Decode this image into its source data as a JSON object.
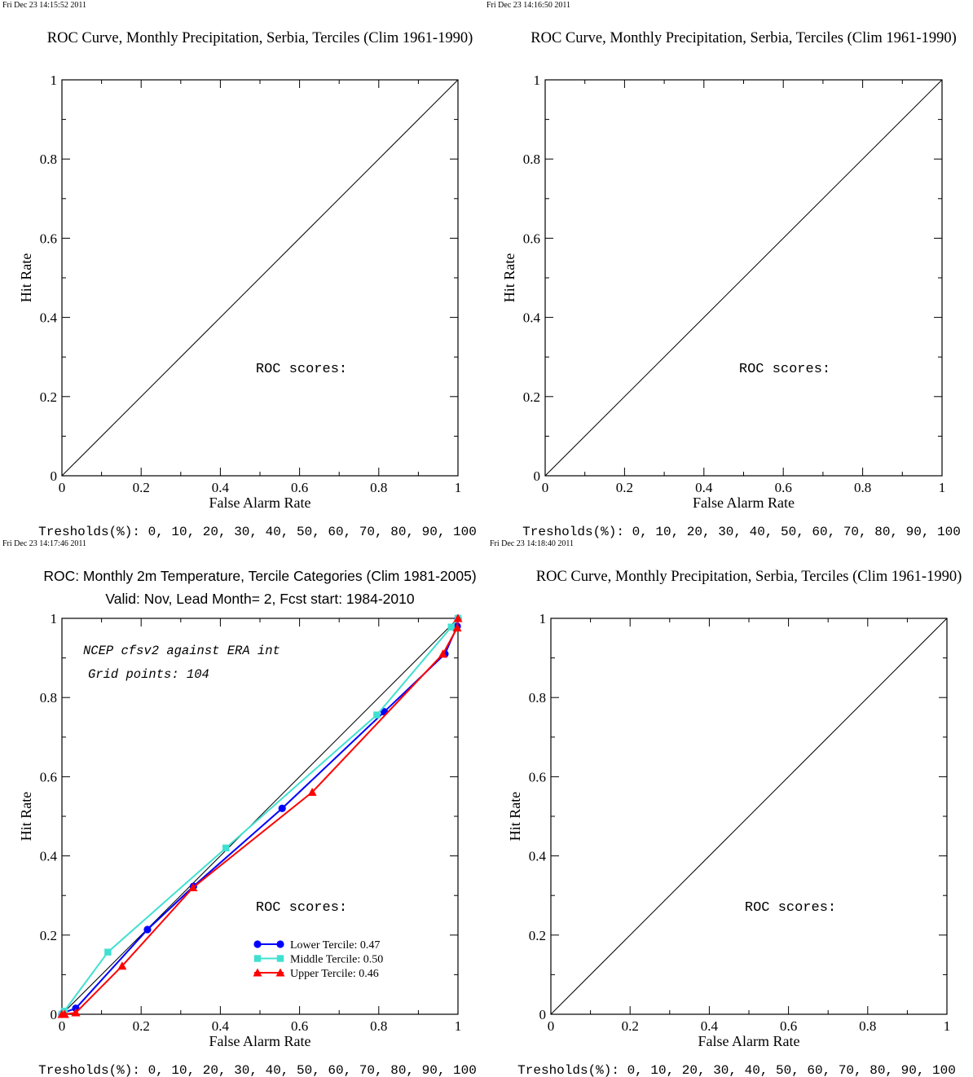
{
  "panels": [
    {
      "timestamp": "Fri Dec 23 14:15:52 2011",
      "title_lines": [
        "ROC Curve, Monthly Precipitation, Serbia, Terciles (Clim 1961-1990)"
      ],
      "title_font": "serif",
      "xlabel": "False Alarm Rate",
      "ylabel": "Hit Rate",
      "roc_label": "ROC scores:",
      "thresholds": "Tresholds(%): 0, 10, 20, 30, 40, 50, 60, 70, 80, 90, 100",
      "annotations": [],
      "legend": [],
      "series": []
    },
    {
      "timestamp": "Fri Dec 23 14:16:50 2011",
      "title_lines": [
        "ROC Curve, Monthly Precipitation, Serbia, Terciles (Clim 1961-1990)"
      ],
      "title_font": "serif",
      "xlabel": "False Alarm Rate",
      "ylabel": "Hit Rate",
      "roc_label": "ROC scores:",
      "thresholds": "Tresholds(%): 0, 10, 20, 30, 40, 50, 60, 70, 80, 90, 100",
      "annotations": [],
      "legend": [],
      "series": []
    },
    {
      "timestamp": "Fri Dec 23 14:17:46 2011",
      "title_lines": [
        "ROC: Monthly 2m Temperature, Tercile Categories (Clim 1981-2005)",
        "Valid: Nov, Lead Month= 2, Fcst start: 1984-2010"
      ],
      "title_font": "sans",
      "xlabel": "False Alarm Rate",
      "ylabel": "Hit Rate",
      "roc_label": "ROC scores:",
      "thresholds": "Tresholds(%): 0, 10, 20, 30, 40, 50, 60, 70, 80, 90, 100",
      "annotations": [
        "NCEP cfsv2 against ERA int",
        "Grid points:  104"
      ],
      "legend": [
        "Lower Tercile: 0.47",
        "Middle Tercile: 0.50",
        "Upper Tercile: 0.46"
      ],
      "series": [
        0,
        1,
        2
      ]
    },
    {
      "timestamp": "Fri Dec 23 14:18:40 2011",
      "title_lines": [
        "ROC Curve, Monthly Precipitation, Serbia, Terciles (Clim 1961-1990)"
      ],
      "title_font": "serif",
      "xlabel": "False Alarm Rate",
      "ylabel": "Hit Rate",
      "roc_label": "ROC scores:",
      "thresholds": "Tresholds(%): 0, 10, 20, 30, 40, 50, 60, 70, 80, 90, 100",
      "annotations": [],
      "legend": [],
      "series": []
    }
  ],
  "chart_data": [
    {
      "type": "line",
      "title": "ROC Curve, Monthly Precipitation, Serbia, Terciles (Clim 1961-1990)",
      "xlabel": "False Alarm Rate",
      "ylabel": "Hit Rate",
      "xlim": [
        0,
        1
      ],
      "ylim": [
        0,
        1
      ],
      "xticks": [
        "0",
        "0.2",
        "0.4",
        "0.6",
        "0.8",
        "1"
      ],
      "yticks": [
        "0",
        "0.2",
        "0.4",
        "0.6",
        "0.8",
        "1"
      ],
      "diagonal": [
        [
          0,
          0
        ],
        [
          1,
          1
        ]
      ],
      "series": []
    },
    {
      "type": "line",
      "title": "ROC Curve, Monthly Precipitation, Serbia, Terciles (Clim 1961-1990)",
      "xlabel": "False Alarm Rate",
      "ylabel": "Hit Rate",
      "xlim": [
        0,
        1
      ],
      "ylim": [
        0,
        1
      ],
      "xticks": [
        "0",
        "0.2",
        "0.4",
        "0.6",
        "0.8",
        "1"
      ],
      "yticks": [
        "0",
        "0.2",
        "0.4",
        "0.6",
        "0.8",
        "1"
      ],
      "diagonal": [
        [
          0,
          0
        ],
        [
          1,
          1
        ]
      ],
      "series": []
    },
    {
      "type": "line",
      "title": "ROC: Monthly 2m Temperature, Tercile Categories (Clim 1981-2005)",
      "subtitle": "Valid: Nov, Lead Month= 2, Fcst start: 1984-2010",
      "xlabel": "False Alarm Rate",
      "ylabel": "Hit Rate",
      "xlim": [
        0,
        1
      ],
      "ylim": [
        0,
        1
      ],
      "xticks": [
        "0",
        "0.2",
        "0.4",
        "0.6",
        "0.8",
        "1"
      ],
      "yticks": [
        "0",
        "0.2",
        "0.4",
        "0.6",
        "0.8",
        "1"
      ],
      "diagonal": [
        [
          0,
          0
        ],
        [
          1,
          1
        ]
      ],
      "legend_position": "bottom-center",
      "series": [
        {
          "name": "Lower Tercile: 0.47",
          "color": "#0000ff",
          "marker": "circle",
          "x": [
            0.0,
            0.004,
            0.035,
            0.216,
            0.332,
            0.556,
            0.814,
            0.967,
            0.998,
            1.0
          ],
          "y": [
            0.0,
            0.004,
            0.015,
            0.214,
            0.323,
            0.52,
            0.764,
            0.91,
            0.98,
            1.0
          ]
        },
        {
          "name": "Middle Tercile: 0.50",
          "color": "#40e0d0",
          "marker": "square",
          "x": [
            0.0,
            0.006,
            0.116,
            0.414,
            0.795,
            0.983,
            1.0
          ],
          "y": [
            0.0,
            0.008,
            0.157,
            0.42,
            0.756,
            0.978,
            1.0
          ]
        },
        {
          "name": "Upper Tercile: 0.46",
          "color": "#ff0000",
          "marker": "triangle",
          "x": [
            0.0,
            0.007,
            0.035,
            0.152,
            0.331,
            0.632,
            0.962,
            0.998,
            1.0
          ],
          "y": [
            0.0,
            0.0,
            0.004,
            0.122,
            0.32,
            0.561,
            0.91,
            0.976,
            1.0
          ]
        }
      ]
    },
    {
      "type": "line",
      "title": "ROC Curve, Monthly Precipitation, Serbia, Terciles (Clim 1961-1990)",
      "xlabel": "False Alarm Rate",
      "ylabel": "Hit Rate",
      "xlim": [
        0,
        1
      ],
      "ylim": [
        0,
        1
      ],
      "xticks": [
        "0",
        "0.2",
        "0.4",
        "0.6",
        "0.8",
        "1"
      ],
      "yticks": [
        "0",
        "0.2",
        "0.4",
        "0.6",
        "0.8",
        "1"
      ],
      "diagonal": [
        [
          0,
          0
        ],
        [
          1,
          1
        ]
      ],
      "series": []
    }
  ]
}
